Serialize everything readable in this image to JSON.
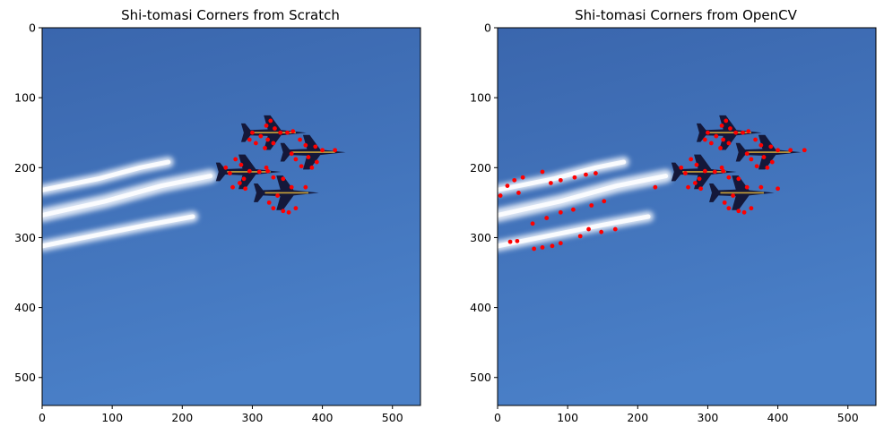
{
  "colors": {
    "sky_top": "#3a66ad",
    "sky_bottom": "#4a80c8",
    "contrail": "#eef3fb",
    "jet_body": "#14183a",
    "jet_trim": "#c9a23a",
    "corner_marker": "#ff0000",
    "axis": "#000000"
  },
  "image_extent": {
    "x": [
      0,
      540
    ],
    "y": [
      540,
      0
    ]
  },
  "panels": [
    {
      "id": "scratch",
      "title": "Shi-tomasi Corners from Scratch",
      "x_ticks": [
        "0",
        "100",
        "200",
        "300",
        "400",
        "500"
      ],
      "y_ticks": [
        "0",
        "100",
        "200",
        "300",
        "400",
        "500"
      ],
      "corners": [
        [
          326,
          133
        ],
        [
          320,
          140
        ],
        [
          332,
          144
        ],
        [
          340,
          150
        ],
        [
          350,
          150
        ],
        [
          358,
          148
        ],
        [
          300,
          150
        ],
        [
          296,
          160
        ],
        [
          312,
          155
        ],
        [
          322,
          160
        ],
        [
          330,
          165
        ],
        [
          318,
          172
        ],
        [
          305,
          165
        ],
        [
          368,
          160
        ],
        [
          376,
          168
        ],
        [
          390,
          170
        ],
        [
          400,
          175
        ],
        [
          418,
          175
        ],
        [
          380,
          185
        ],
        [
          392,
          192
        ],
        [
          385,
          200
        ],
        [
          370,
          198
        ],
        [
          362,
          188
        ],
        [
          356,
          180
        ],
        [
          262,
          200
        ],
        [
          268,
          208
        ],
        [
          276,
          188
        ],
        [
          284,
          196
        ],
        [
          296,
          205
        ],
        [
          310,
          206
        ],
        [
          320,
          200
        ],
        [
          288,
          216
        ],
        [
          282,
          222
        ],
        [
          272,
          228
        ],
        [
          290,
          230
        ],
        [
          322,
          205
        ],
        [
          330,
          214
        ],
        [
          344,
          216
        ],
        [
          356,
          228
        ],
        [
          376,
          228
        ],
        [
          336,
          240
        ],
        [
          324,
          250
        ],
        [
          330,
          258
        ],
        [
          352,
          264
        ],
        [
          362,
          258
        ],
        [
          344,
          262
        ]
      ]
    },
    {
      "id": "opencv",
      "title": "Shi-tomasi Corners from OpenCV",
      "x_ticks": [
        "0",
        "100",
        "200",
        "300",
        "400",
        "500"
      ],
      "y_ticks": [
        "0",
        "100",
        "200",
        "300",
        "400",
        "500"
      ],
      "corners": [
        [
          326,
          133
        ],
        [
          320,
          140
        ],
        [
          332,
          144
        ],
        [
          340,
          150
        ],
        [
          350,
          150
        ],
        [
          358,
          148
        ],
        [
          300,
          150
        ],
        [
          296,
          160
        ],
        [
          312,
          155
        ],
        [
          322,
          160
        ],
        [
          330,
          165
        ],
        [
          318,
          172
        ],
        [
          305,
          165
        ],
        [
          368,
          160
        ],
        [
          376,
          168
        ],
        [
          390,
          170
        ],
        [
          400,
          175
        ],
        [
          418,
          175
        ],
        [
          438,
          175
        ],
        [
          380,
          185
        ],
        [
          392,
          192
        ],
        [
          385,
          200
        ],
        [
          370,
          198
        ],
        [
          362,
          188
        ],
        [
          356,
          180
        ],
        [
          262,
          200
        ],
        [
          268,
          208
        ],
        [
          276,
          188
        ],
        [
          284,
          196
        ],
        [
          296,
          205
        ],
        [
          310,
          206
        ],
        [
          320,
          200
        ],
        [
          288,
          216
        ],
        [
          282,
          222
        ],
        [
          272,
          228
        ],
        [
          290,
          230
        ],
        [
          322,
          205
        ],
        [
          330,
          214
        ],
        [
          344,
          216
        ],
        [
          356,
          228
        ],
        [
          376,
          228
        ],
        [
          400,
          230
        ],
        [
          336,
          240
        ],
        [
          324,
          250
        ],
        [
          330,
          258
        ],
        [
          352,
          264
        ],
        [
          362,
          258
        ],
        [
          344,
          262
        ],
        [
          4,
          240
        ],
        [
          14,
          226
        ],
        [
          24,
          218
        ],
        [
          36,
          214
        ],
        [
          64,
          206
        ],
        [
          30,
          236
        ],
        [
          76,
          222
        ],
        [
          90,
          218
        ],
        [
          110,
          214
        ],
        [
          126,
          210
        ],
        [
          140,
          208
        ],
        [
          50,
          280
        ],
        [
          70,
          272
        ],
        [
          90,
          264
        ],
        [
          108,
          260
        ],
        [
          134,
          254
        ],
        [
          152,
          248
        ],
        [
          225,
          228
        ],
        [
          18,
          306
        ],
        [
          28,
          305
        ],
        [
          52,
          316
        ],
        [
          64,
          314
        ],
        [
          78,
          312
        ],
        [
          90,
          308
        ],
        [
          118,
          298
        ],
        [
          130,
          288
        ],
        [
          148,
          292
        ],
        [
          168,
          288
        ]
      ]
    }
  ]
}
